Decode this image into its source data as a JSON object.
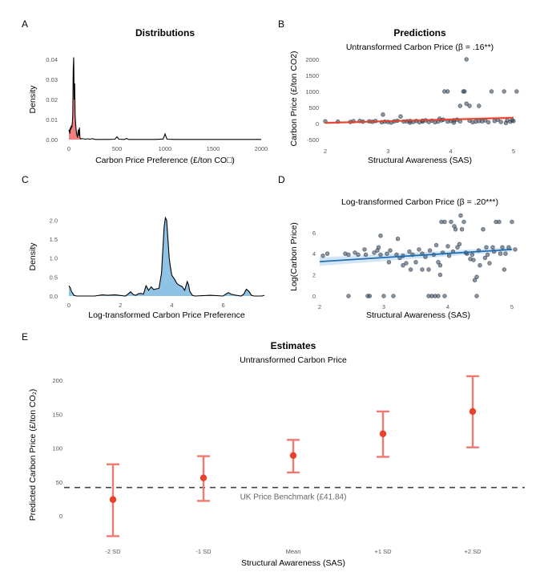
{
  "figure": {
    "section_titles": {
      "distributions": "Distributions",
      "predictions": "Predictions",
      "estimates": "Estimates"
    }
  },
  "chart_data": [
    {
      "id": "A",
      "panel_letter": "A",
      "type": "area",
      "title": "Distributions",
      "subtitle": "",
      "xlabel": "Carbon Price Preference (£/ton CO□)",
      "ylabel": "Density",
      "xlim": [
        0,
        2000
      ],
      "ylim": [
        0,
        0.04
      ],
      "xticks": [
        0,
        500,
        1000,
        1500,
        2000
      ],
      "xtick_labels": [
        "0",
        "500",
        "1000",
        "1500",
        "2000"
      ],
      "yticks": [
        0,
        0.01,
        0.02,
        0.03,
        0.04
      ],
      "ytick_labels": [
        "0.00",
        "0.01",
        "0.02",
        "0.03",
        "0.04"
      ],
      "fill_color": "#f08080",
      "line_color": "#000000",
      "x": [
        0,
        5,
        10,
        15,
        20,
        25,
        30,
        35,
        40,
        45,
        50,
        55,
        60,
        65,
        70,
        75,
        80,
        85,
        90,
        95,
        100,
        105,
        110,
        115,
        120,
        130,
        150,
        170,
        200,
        220,
        250,
        260,
        280,
        300,
        400,
        480,
        500,
        520,
        580,
        600,
        620,
        700,
        900,
        980,
        990,
        1000,
        1010,
        1020,
        1100,
        1500,
        2000
      ],
      "y": [
        0.004,
        0.005,
        0.003,
        0.006,
        0.005,
        0.007,
        0.006,
        0.008,
        0.012,
        0.035,
        0.041,
        0.02,
        0.028,
        0.012,
        0.008,
        0.005,
        0.003,
        0.002,
        0.001,
        0.004,
        0.005,
        0.002,
        0.006,
        0.001,
        0.0003,
        0.0005,
        0.0004,
        0.0002,
        0.0004,
        0.0002,
        0.0005,
        0.0002,
        0.0001,
        0.0001,
        0.0001,
        0.0002,
        0.0014,
        0.0002,
        0.0001,
        0.0006,
        0.0001,
        0.0001,
        0.0001,
        0.0003,
        0.0015,
        0.0028,
        0.0015,
        0.0002,
        0.0001,
        0.0001,
        0.0001
      ],
      "fill_until_x": 115
    },
    {
      "id": "B",
      "panel_letter": "B",
      "type": "scatter",
      "title": "Predictions",
      "subtitle": "Untransformed Carbon Price (β = .16**)",
      "xlabel": "Structural Awareness (SAS)",
      "ylabel": "Carbon Price (£/ton CO2)",
      "xlim": [
        1.95,
        5.1
      ],
      "ylim": [
        -600,
        2150
      ],
      "xticks": [
        2,
        3,
        4,
        5
      ],
      "xtick_labels": [
        "2",
        "3",
        "4",
        "5"
      ],
      "yticks": [
        -500,
        0,
        500,
        1000,
        1500,
        2000
      ],
      "ytick_labels": [
        "-500",
        "0",
        "500",
        "1000",
        "1500",
        "2000"
      ],
      "point_color": "#2d3e50",
      "line_color": "#e8412c",
      "band_color": "#f4a6a0",
      "fit": {
        "x": [
          2.0,
          5.0
        ],
        "y": [
          20,
          180
        ],
        "band_lower": [
          -20,
          140
        ],
        "band_upper": [
          60,
          225
        ]
      },
      "points": [
        [
          2.0,
          70
        ],
        [
          2.2,
          60
        ],
        [
          2.4,
          50
        ],
        [
          2.45,
          75
        ],
        [
          2.55,
          80
        ],
        [
          2.6,
          60
        ],
        [
          2.7,
          70
        ],
        [
          2.75,
          55
        ],
        [
          2.8,
          80
        ],
        [
          2.9,
          40
        ],
        [
          2.92,
          280
        ],
        [
          2.95,
          60
        ],
        [
          3.0,
          50
        ],
        [
          3.05,
          30
        ],
        [
          3.1,
          70
        ],
        [
          3.15,
          90
        ],
        [
          3.2,
          220
        ],
        [
          3.25,
          60
        ],
        [
          3.3,
          70
        ],
        [
          3.35,
          30
        ],
        [
          3.4,
          50
        ],
        [
          3.45,
          80
        ],
        [
          3.5,
          40
        ],
        [
          3.55,
          60
        ],
        [
          3.6,
          100
        ],
        [
          3.65,
          50
        ],
        [
          3.7,
          90
        ],
        [
          3.75,
          40
        ],
        [
          3.8,
          60
        ],
        [
          3.82,
          150
        ],
        [
          3.85,
          100
        ],
        [
          3.88,
          120
        ],
        [
          3.9,
          1000
        ],
        [
          3.95,
          1000
        ],
        [
          3.95,
          60
        ],
        [
          4.0,
          80
        ],
        [
          4.05,
          30
        ],
        [
          4.1,
          120
        ],
        [
          4.15,
          70
        ],
        [
          4.2,
          1000
        ],
        [
          4.22,
          1000
        ],
        [
          4.15,
          550
        ],
        [
          4.25,
          620
        ],
        [
          4.3,
          550
        ],
        [
          4.25,
          2000
        ],
        [
          4.3,
          90
        ],
        [
          4.35,
          40
        ],
        [
          4.4,
          60
        ],
        [
          4.45,
          550
        ],
        [
          4.5,
          70
        ],
        [
          4.55,
          100
        ],
        [
          4.6,
          40
        ],
        [
          4.65,
          1000
        ],
        [
          4.7,
          80
        ],
        [
          4.75,
          120
        ],
        [
          4.8,
          50
        ],
        [
          4.85,
          1000
        ],
        [
          4.88,
          20
        ],
        [
          4.9,
          100
        ],
        [
          4.95,
          60
        ],
        [
          5.0,
          80
        ],
        [
          5.05,
          1000
        ],
        [
          4.98,
          100
        ],
        [
          3.35,
          80
        ],
        [
          3.55,
          90
        ],
        [
          4.05,
          100
        ],
        [
          4.45,
          80
        ]
      ]
    },
    {
      "id": "C",
      "panel_letter": "C",
      "type": "area",
      "title": "",
      "subtitle": "",
      "xlabel": "Log-transformed Carbon Price Preference",
      "ylabel": "Density",
      "xlim": [
        0,
        7.6
      ],
      "ylim": [
        0,
        2.05
      ],
      "xticks": [
        0,
        2,
        4,
        6
      ],
      "xtick_labels": [
        "0",
        "2",
        "4",
        "6"
      ],
      "yticks": [
        0,
        0.5,
        1.0,
        1.5,
        2.0
      ],
      "ytick_labels": [
        "0.0",
        "0.5",
        "1.0",
        "1.5",
        "2.0"
      ],
      "fill_color": "#8fc3e6",
      "line_color": "#000000",
      "x": [
        0,
        0.05,
        0.1,
        0.2,
        0.3,
        1.0,
        1.3,
        1.5,
        1.8,
        2.2,
        2.3,
        2.4,
        2.5,
        2.6,
        2.7,
        2.8,
        2.9,
        3.0,
        3.1,
        3.2,
        3.3,
        3.4,
        3.5,
        3.6,
        3.7,
        3.75,
        3.8,
        3.85,
        3.9,
        3.95,
        4.0,
        4.1,
        4.2,
        4.3,
        4.4,
        4.5,
        4.6,
        4.65,
        4.7,
        4.8,
        4.9,
        5.5,
        6.0,
        6.1,
        6.2,
        6.3,
        6.5,
        6.7,
        6.8,
        6.9,
        7.0,
        7.1,
        7.2,
        7.5,
        7.6
      ],
      "y": [
        0.27,
        0.22,
        0.12,
        0.02,
        0.0,
        0.0,
        0.03,
        0.02,
        0.03,
        0.0,
        0.05,
        0.11,
        0.04,
        0.02,
        0.06,
        0.07,
        0.05,
        0.27,
        0.15,
        0.24,
        0.17,
        0.19,
        0.2,
        0.6,
        1.8,
        2.06,
        2.0,
        1.5,
        1.0,
        0.75,
        0.55,
        0.45,
        0.33,
        0.28,
        0.25,
        0.15,
        0.38,
        0.3,
        0.12,
        0.02,
        0.0,
        0.02,
        0.0,
        0.05,
        0.09,
        0.05,
        0.02,
        0.0,
        0.05,
        0.18,
        0.12,
        0.02,
        0.0,
        0.0,
        0.02
      ]
    },
    {
      "id": "D",
      "panel_letter": "D",
      "type": "scatter",
      "title": "",
      "subtitle": "Log-transformed Carbon Price (β = .20***)",
      "xlabel": "Structural Awareness (SAS)",
      "ylabel": "Log(Carbon Price)",
      "xlim": [
        1.95,
        5.1
      ],
      "ylim": [
        -0.3,
        8.0
      ],
      "xticks": [
        2,
        3,
        4,
        5
      ],
      "xtick_labels": [
        "2",
        "3",
        "4",
        "5"
      ],
      "yticks": [
        0,
        2,
        4,
        6
      ],
      "ytick_labels": [
        "0",
        "2",
        "4",
        "6"
      ],
      "point_color": "#2d3e50",
      "line_color": "#1f6fb4",
      "band_color": "#b7d6ee",
      "fit": {
        "x": [
          2.0,
          5.0
        ],
        "y": [
          3.25,
          4.4
        ],
        "band_lower": [
          2.85,
          4.2
        ],
        "band_upper": [
          3.65,
          4.6
        ]
      },
      "points": [
        [
          2.05,
          3.8
        ],
        [
          2.12,
          4.0
        ],
        [
          2.4,
          4.0
        ],
        [
          2.45,
          3.9
        ],
        [
          2.45,
          0
        ],
        [
          2.55,
          4.1
        ],
        [
          2.6,
          3.9
        ],
        [
          2.7,
          4.4
        ],
        [
          2.72,
          3.9
        ],
        [
          2.75,
          0
        ],
        [
          2.78,
          0
        ],
        [
          2.85,
          4.1
        ],
        [
          2.9,
          4.3
        ],
        [
          2.92,
          4.6
        ],
        [
          2.95,
          5.7
        ],
        [
          2.95,
          3.9
        ],
        [
          3.0,
          0
        ],
        [
          3.05,
          4.0
        ],
        [
          3.08,
          3.2
        ],
        [
          3.1,
          4.3
        ],
        [
          3.15,
          0
        ],
        [
          3.2,
          3.9
        ],
        [
          3.22,
          5.4
        ],
        [
          3.25,
          3.6
        ],
        [
          3.3,
          2.9
        ],
        [
          3.35,
          3.1
        ],
        [
          3.4,
          4.2
        ],
        [
          3.42,
          2.5
        ],
        [
          3.5,
          3.2
        ],
        [
          3.55,
          4.4
        ],
        [
          3.6,
          2.5
        ],
        [
          3.7,
          2.5
        ],
        [
          3.7,
          0
        ],
        [
          3.75,
          0
        ],
        [
          3.8,
          0
        ],
        [
          3.82,
          4.8
        ],
        [
          3.85,
          3.2
        ],
        [
          3.85,
          0
        ],
        [
          3.88,
          2.9
        ],
        [
          3.88,
          2.0
        ],
        [
          3.9,
          7.0
        ],
        [
          3.95,
          7.0
        ],
        [
          3.95,
          0
        ],
        [
          4.0,
          4.7
        ],
        [
          4.05,
          7.0
        ],
        [
          4.1,
          6.6
        ],
        [
          4.12,
          6.3
        ],
        [
          4.15,
          4.6
        ],
        [
          4.18,
          4.9
        ],
        [
          4.2,
          7.6
        ],
        [
          4.22,
          6.3
        ],
        [
          4.25,
          7.0
        ],
        [
          4.3,
          4.0
        ],
        [
          4.35,
          3.5
        ],
        [
          4.4,
          3.4
        ],
        [
          4.42,
          1.5
        ],
        [
          4.45,
          0
        ],
        [
          4.45,
          1.8
        ],
        [
          4.5,
          2.9
        ],
        [
          4.55,
          6.3
        ],
        [
          4.58,
          3.6
        ],
        [
          4.6,
          4.6
        ],
        [
          4.65,
          3.1
        ],
        [
          4.7,
          4.6
        ],
        [
          4.75,
          7.0
        ],
        [
          4.8,
          7.0
        ],
        [
          4.85,
          4.6
        ],
        [
          4.88,
          2.5
        ],
        [
          4.9,
          4.0
        ],
        [
          4.95,
          4.6
        ],
        [
          5.0,
          7.0
        ],
        [
          5.05,
          4.4
        ],
        [
          3.6,
          4.0
        ],
        [
          3.65,
          3.7
        ],
        [
          3.72,
          4.3
        ],
        [
          3.78,
          3.9
        ],
        [
          3.92,
          4.1
        ],
        [
          4.02,
          3.8
        ],
        [
          4.08,
          4.2
        ],
        [
          4.28,
          4.1
        ],
        [
          4.38,
          3.9
        ],
        [
          4.48,
          4.3
        ],
        [
          4.62,
          3.9
        ],
        [
          4.72,
          4.2
        ],
        [
          4.82,
          4.0
        ],
        [
          3.45,
          3.9
        ],
        [
          3.3,
          3.8
        ]
      ]
    },
    {
      "id": "E",
      "panel_letter": "E",
      "type": "errorbar",
      "title": "Estimates",
      "subtitle": "Untransformed Carbon Price",
      "xlabel": "Structural Awareness (SAS)",
      "ylabel": "Predicted Carbon Price (£/ton CO₂)",
      "categories": [
        "-2 SD",
        "-1 SD",
        "Mean",
        "+1 SD",
        "+2 SD"
      ],
      "values": [
        24,
        56,
        89,
        121,
        154
      ],
      "lower": [
        -30,
        22,
        64,
        87,
        101
      ],
      "upper": [
        76,
        88,
        112,
        154,
        206
      ],
      "ylim": [
        -45,
        215
      ],
      "yticks": [
        0,
        50,
        100,
        150,
        200
      ],
      "ytick_labels": [
        "0",
        "50",
        "100",
        "150",
        "200"
      ],
      "point_color": "#e8412c",
      "bar_color": "#ef7a6f",
      "reference_line": {
        "value": 41.84,
        "label": "UK Price Benchmark (£41.84)",
        "color": "#444444"
      }
    }
  ]
}
